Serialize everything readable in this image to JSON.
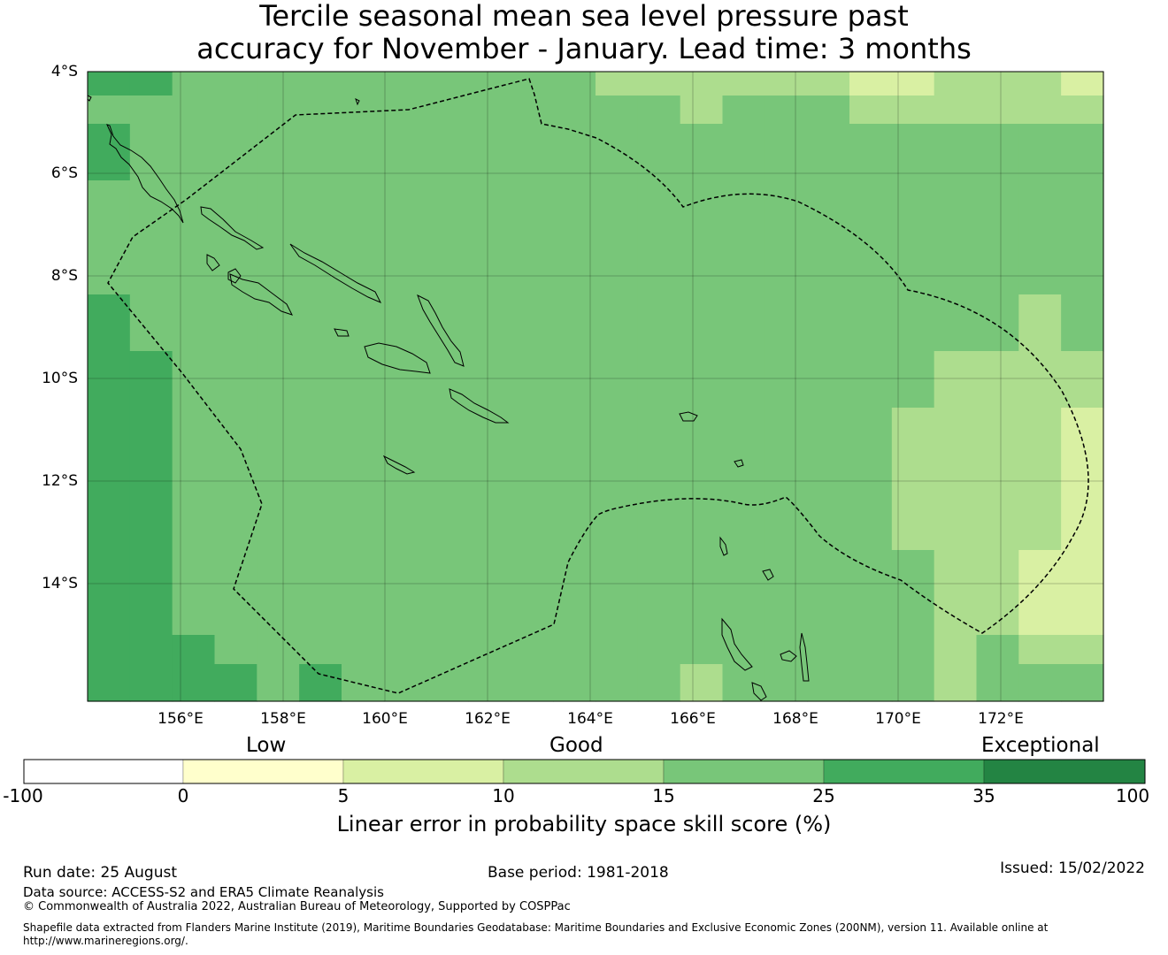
{
  "title": {
    "line1": "Tercile seasonal mean sea level pressure past",
    "line2": "accuracy for November - January. Lead time: 3 months"
  },
  "map": {
    "lat_labels": [
      "4°S",
      "6°S",
      "8°S",
      "10°S",
      "12°S",
      "14°S"
    ],
    "lon_labels": [
      "156°E",
      "158°E",
      "160°E",
      "162°E",
      "164°E",
      "166°E",
      "168°E",
      "170°E",
      "172°E"
    ],
    "colors": {
      "0": "#ffffff",
      "1": "#ffffcc",
      "2": "#d9f0a3",
      "3": "#addd8e",
      "4": "#78c679",
      "5": "#41ab5d",
      "6": "#238443"
    },
    "grid_cols": 24,
    "grid_rows": 11,
    "cells": [
      "554444444444333333223332",
      "444444444444443444333333",
      "544444444444444444444444",
      "544444444444444444444444",
      "444444444444444444444444",
      "544444444444444444444434",
      "554444444444444444443333",
      "554444444444444444433332",
      "554444444444444444443322",
      "555444444444444444443433",
      "555545444444443444443444"
    ]
  },
  "colorbar": {
    "category_labels": [
      "Low",
      "Good",
      "Exceptional"
    ],
    "ticks": [
      "-100",
      "0",
      "5",
      "10",
      "15",
      "25",
      "35",
      "100"
    ],
    "colors": [
      "#ffffff",
      "#ffffcc",
      "#d9f0a3",
      "#addd8e",
      "#78c679",
      "#41ab5d",
      "#238443"
    ],
    "axis_label": "Linear error in probability space skill score (%)"
  },
  "footer": {
    "run_date": "Run date: 25 August",
    "base_period": "Base period: 1981-2018",
    "issued": "Issued: 15/02/2022",
    "data_source": "Data source: ACCESS-S2 and ERA5 Climate Reanalysis",
    "copyright": "© Commonwealth of Australia 2022, Australian Bureau of Meteorology, Supported by COSPPac",
    "shapefile_line1": "Shapefile data extracted from Flanders Marine Institute (2019), Maritime Boundaries Geodatabase: Maritime Boundaries and Exclusive Economic Zones (200NM), version 11. Available online at",
    "shapefile_line2": "http://www.marineregions.org/."
  }
}
